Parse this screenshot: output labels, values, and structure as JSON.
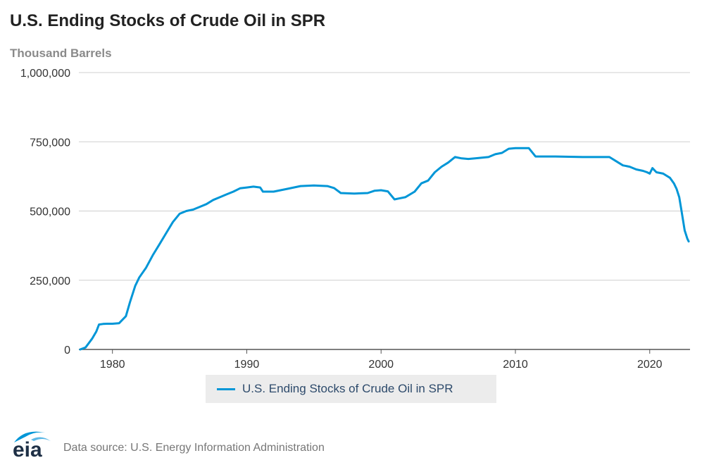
{
  "chart_data": {
    "type": "line",
    "title": "U.S. Ending Stocks of Crude Oil in SPR",
    "ylabel": "Thousand Barrels",
    "xlabel": "",
    "xlim": [
      1977.5,
      2023.0
    ],
    "ylim": [
      0,
      1000000
    ],
    "yticks": [
      0,
      250000,
      500000,
      750000,
      1000000
    ],
    "ytick_labels": [
      "0",
      "250,000",
      "500,000",
      "750,000",
      "1,000,000"
    ],
    "xticks": [
      1980,
      1990,
      2000,
      2010,
      2020
    ],
    "xtick_labels": [
      "1980",
      "1990",
      "2000",
      "2010",
      "2020"
    ],
    "grid": true,
    "legend_position": "bottom-center",
    "line_color": "#0096d7",
    "series": [
      {
        "name": "U.S. Ending Stocks of Crude Oil in SPR",
        "x": [
          1977.6,
          1978.0,
          1978.5,
          1978.8,
          1979.0,
          1979.3,
          1979.6,
          1980.0,
          1980.5,
          1981.0,
          1981.3,
          1981.7,
          1982.0,
          1982.5,
          1983.0,
          1983.5,
          1984.0,
          1984.5,
          1985.0,
          1985.5,
          1986.0,
          1986.5,
          1987.0,
          1987.5,
          1988.0,
          1988.5,
          1989.0,
          1989.5,
          1990.0,
          1990.5,
          1991.0,
          1991.2,
          1992.0,
          1993.0,
          1994.0,
          1995.0,
          1996.0,
          1996.5,
          1997.0,
          1998.0,
          1999.0,
          1999.5,
          2000.0,
          2000.5,
          2001.0,
          2001.3,
          2001.8,
          2002.5,
          2003.0,
          2003.5,
          2004.0,
          2004.5,
          2005.0,
          2005.5,
          2006.0,
          2006.5,
          2007.0,
          2008.0,
          2008.5,
          2009.0,
          2009.5,
          2010.0,
          2011.0,
          2011.5,
          2012.0,
          2013.0,
          2014.0,
          2015.0,
          2016.0,
          2017.0,
          2017.5,
          2018.0,
          2018.5,
          2019.0,
          2019.5,
          2019.8,
          2020.0,
          2020.2,
          2020.5,
          2021.0,
          2021.5,
          2021.8,
          2022.0,
          2022.2,
          2022.4,
          2022.6,
          2022.8,
          2022.9
        ],
        "values": [
          0,
          7000,
          40000,
          65000,
          90000,
          92000,
          93000,
          93000,
          95000,
          120000,
          170000,
          230000,
          260000,
          295000,
          340000,
          380000,
          420000,
          460000,
          490000,
          500000,
          505000,
          515000,
          525000,
          540000,
          550000,
          560000,
          570000,
          582000,
          585000,
          588000,
          585000,
          570000,
          570000,
          580000,
          590000,
          592000,
          590000,
          583000,
          565000,
          563000,
          565000,
          573000,
          575000,
          571000,
          542000,
          545000,
          550000,
          570000,
          600000,
          610000,
          640000,
          660000,
          675000,
          695000,
          690000,
          688000,
          690000,
          695000,
          705000,
          710000,
          725000,
          727000,
          727000,
          697000,
          697000,
          697000,
          696000,
          695000,
          695000,
          695000,
          680000,
          665000,
          660000,
          650000,
          645000,
          640000,
          635000,
          655000,
          640000,
          635000,
          620000,
          600000,
          580000,
          550000,
          490000,
          430000,
          400000,
          390000
        ]
      }
    ]
  },
  "footer": {
    "logo_text": "eia",
    "source": "Data source: U.S. Energy Information Administration"
  }
}
